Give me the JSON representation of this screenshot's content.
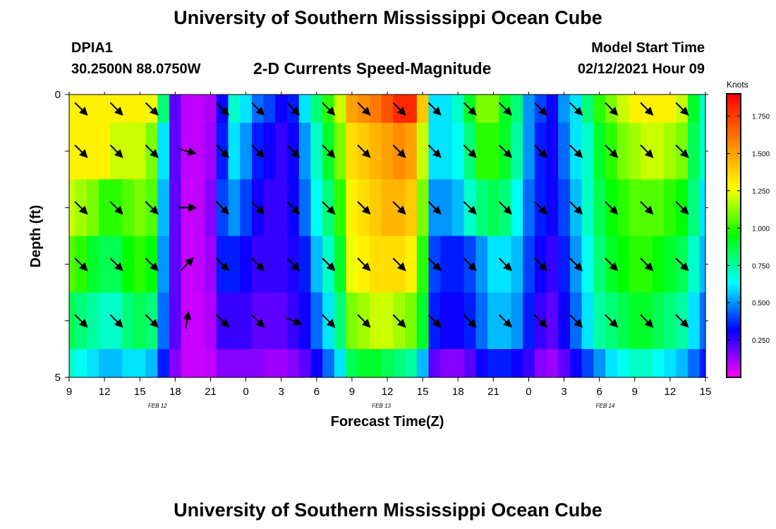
{
  "header": {
    "title": "University of Southern Mississippi Ocean Cube",
    "station_id": "DPIA1",
    "coordinates": "30.2500N 88.0750W",
    "model_start_label": "Model Start Time",
    "model_start_value": "02/12/2021 Hour 09"
  },
  "footer": {
    "title": "University of Southern Mississippi Ocean Cube"
  },
  "chart_data": {
    "type": "heatmap",
    "title": "2-D Currents Speed-Magnitude",
    "xlabel": "Forecast Time(Z)",
    "ylabel": "Depth (ft)",
    "colorbar_label": "Knots",
    "y_ticks": [
      "0",
      "5"
    ],
    "y_range": [
      0,
      5
    ],
    "x_hours_range": [
      0,
      54
    ],
    "x_ticks": [
      {
        "h": 0,
        "label": "9"
      },
      {
        "h": 3,
        "label": "12"
      },
      {
        "h": 6,
        "label": "15"
      },
      {
        "h": 9,
        "label": "18"
      },
      {
        "h": 12,
        "label": "21"
      },
      {
        "h": 15,
        "label": "0"
      },
      {
        "h": 18,
        "label": "3"
      },
      {
        "h": 21,
        "label": "6"
      },
      {
        "h": 24,
        "label": "9"
      },
      {
        "h": 27,
        "label": "12"
      },
      {
        "h": 30,
        "label": "15"
      },
      {
        "h": 33,
        "label": "18"
      },
      {
        "h": 36,
        "label": "21"
      },
      {
        "h": 39,
        "label": "0"
      },
      {
        "h": 42,
        "label": "3"
      },
      {
        "h": 45,
        "label": "6"
      },
      {
        "h": 48,
        "label": "9"
      },
      {
        "h": 51,
        "label": "12"
      },
      {
        "h": 54,
        "label": "15"
      }
    ],
    "date_labels": [
      {
        "h": 7.5,
        "label": "FEB 12"
      },
      {
        "h": 26.5,
        "label": "FEB 13"
      },
      {
        "h": 45.5,
        "label": "FEB 14"
      }
    ],
    "colorbar": {
      "min": 0.0,
      "max": 1.9,
      "ticks": [
        "0.250",
        "0.500",
        "0.750",
        "1.000",
        "1.250",
        "1.500",
        "1.750"
      ],
      "tick_values": [
        0.25,
        0.5,
        0.75,
        1.0,
        1.25,
        1.5,
        1.75
      ],
      "colormap": [
        "#ff00ff",
        "#0000ff",
        "#00ffff",
        "#00ff00",
        "#ffff00",
        "#ff8000",
        "#ff0000"
      ]
    },
    "depth_layers": [
      0.25,
      1.0,
      2.0,
      3.0,
      4.0,
      4.75
    ],
    "layer_boundaries": [
      0,
      0.5,
      1.5,
      2.5,
      3.5,
      4.5,
      5.0
    ],
    "time_hours": [
      0,
      1,
      2,
      3,
      4,
      5,
      6,
      7,
      8,
      9,
      10,
      11,
      12,
      13,
      14,
      15,
      16,
      17,
      18,
      19,
      20,
      21,
      22,
      23,
      24,
      25,
      26,
      27,
      28,
      29,
      30,
      31,
      32,
      33,
      34,
      35,
      36,
      37,
      38,
      39,
      40,
      41,
      42,
      43,
      44,
      45,
      46,
      47,
      48,
      49,
      50,
      51,
      52,
      53,
      54
    ],
    "speed_knots": [
      [
        1.3,
        1.3,
        1.3,
        1.3,
        1.3,
        1.3,
        1.3,
        1.25,
        0.8,
        0.2,
        0.08,
        0.08,
        0.1,
        0.3,
        0.7,
        0.6,
        0.45,
        0.4,
        0.3,
        0.35,
        0.6,
        0.8,
        1.0,
        1.2,
        1.5,
        1.55,
        1.6,
        1.7,
        1.8,
        1.8,
        1.4,
        0.6,
        0.6,
        0.7,
        0.9,
        1.1,
        1.1,
        0.9,
        0.8,
        0.5,
        0.4,
        0.3,
        0.5,
        0.6,
        0.8,
        1.0,
        1.1,
        1.2,
        1.3,
        1.3,
        1.3,
        1.3,
        1.2,
        0.9,
        0.7
      ],
      [
        1.3,
        1.3,
        1.3,
        1.3,
        1.2,
        1.2,
        1.2,
        1.1,
        0.6,
        0.2,
        0.08,
        0.08,
        0.12,
        0.35,
        0.6,
        0.5,
        0.35,
        0.3,
        0.25,
        0.3,
        0.5,
        0.7,
        0.9,
        1.1,
        1.35,
        1.4,
        1.45,
        1.5,
        1.55,
        1.5,
        1.2,
        0.6,
        0.6,
        0.65,
        0.8,
        1.0,
        1.0,
        0.9,
        0.75,
        0.5,
        0.35,
        0.3,
        0.45,
        0.6,
        0.7,
        0.9,
        1.0,
        1.1,
        1.15,
        1.2,
        1.2,
        1.15,
        1.1,
        0.85,
        0.7
      ],
      [
        1.2,
        1.15,
        1.1,
        1.0,
        1.0,
        1.05,
        1.1,
        1.05,
        0.55,
        0.2,
        0.07,
        0.08,
        0.15,
        0.4,
        0.5,
        0.4,
        0.3,
        0.25,
        0.25,
        0.3,
        0.45,
        0.65,
        0.8,
        1.0,
        1.3,
        1.35,
        1.4,
        1.45,
        1.45,
        1.4,
        1.1,
        0.5,
        0.5,
        0.55,
        0.7,
        0.8,
        0.85,
        0.8,
        0.65,
        0.45,
        0.35,
        0.3,
        0.4,
        0.55,
        0.7,
        0.85,
        0.95,
        1.0,
        1.05,
        1.05,
        1.05,
        1.0,
        0.95,
        0.8,
        0.6
      ],
      [
        1.05,
        1.0,
        0.9,
        0.85,
        0.85,
        0.95,
        1.0,
        0.95,
        0.5,
        0.2,
        0.07,
        0.08,
        0.12,
        0.35,
        0.35,
        0.3,
        0.25,
        0.25,
        0.25,
        0.28,
        0.35,
        0.55,
        0.7,
        0.9,
        1.25,
        1.3,
        1.35,
        1.35,
        1.35,
        1.3,
        1.0,
        0.4,
        0.35,
        0.35,
        0.4,
        0.5,
        0.6,
        0.6,
        0.55,
        0.4,
        0.3,
        0.25,
        0.35,
        0.5,
        0.65,
        0.8,
        0.9,
        0.95,
        1.0,
        1.0,
        0.95,
        0.9,
        0.85,
        0.7,
        0.55
      ],
      [
        0.85,
        0.8,
        0.75,
        0.7,
        0.7,
        0.8,
        0.85,
        0.8,
        0.45,
        0.2,
        0.07,
        0.07,
        0.1,
        0.25,
        0.25,
        0.25,
        0.2,
        0.2,
        0.2,
        0.25,
        0.3,
        0.45,
        0.6,
        0.8,
        1.1,
        1.15,
        1.2,
        1.2,
        1.15,
        1.1,
        0.9,
        0.35,
        0.3,
        0.3,
        0.35,
        0.45,
        0.55,
        0.55,
        0.5,
        0.35,
        0.25,
        0.2,
        0.3,
        0.45,
        0.6,
        0.75,
        0.8,
        0.85,
        0.9,
        0.9,
        0.85,
        0.8,
        0.75,
        0.6,
        0.45
      ],
      [
        0.7,
        0.65,
        0.6,
        0.55,
        0.55,
        0.6,
        0.6,
        0.55,
        0.35,
        0.15,
        0.07,
        0.07,
        0.08,
        0.15,
        0.15,
        0.15,
        0.15,
        0.12,
        0.12,
        0.15,
        0.2,
        0.3,
        0.45,
        0.6,
        0.85,
        0.9,
        0.9,
        0.85,
        0.8,
        0.75,
        0.55,
        0.2,
        0.15,
        0.15,
        0.2,
        0.3,
        0.35,
        0.35,
        0.3,
        0.25,
        0.15,
        0.12,
        0.2,
        0.3,
        0.4,
        0.5,
        0.6,
        0.65,
        0.7,
        0.7,
        0.65,
        0.6,
        0.55,
        0.45,
        0.35
      ]
    ],
    "vectors": {
      "depths": [
        0.25,
        1.0,
        2.0,
        3.0,
        4.0
      ],
      "hours": [
        1,
        4,
        7,
        10,
        13,
        16,
        19,
        22,
        25,
        28,
        31,
        34,
        37,
        40,
        43,
        46,
        49,
        52
      ],
      "direction_deg": [
        [
          135,
          135,
          135,
          null,
          135,
          135,
          135,
          135,
          135,
          135,
          135,
          135,
          135,
          135,
          135,
          135,
          135,
          135
        ],
        [
          135,
          135,
          135,
          105,
          135,
          135,
          135,
          135,
          135,
          135,
          135,
          135,
          135,
          135,
          135,
          135,
          135,
          135
        ],
        [
          135,
          135,
          135,
          90,
          135,
          135,
          135,
          135,
          135,
          135,
          135,
          135,
          135,
          135,
          135,
          135,
          135,
          135
        ],
        [
          135,
          135,
          135,
          45,
          135,
          135,
          135,
          135,
          135,
          135,
          135,
          135,
          135,
          135,
          135,
          135,
          135,
          135
        ],
        [
          135,
          135,
          135,
          10,
          135,
          135,
          110,
          135,
          135,
          135,
          135,
          135,
          135,
          135,
          135,
          135,
          135,
          135
        ]
      ]
    }
  }
}
